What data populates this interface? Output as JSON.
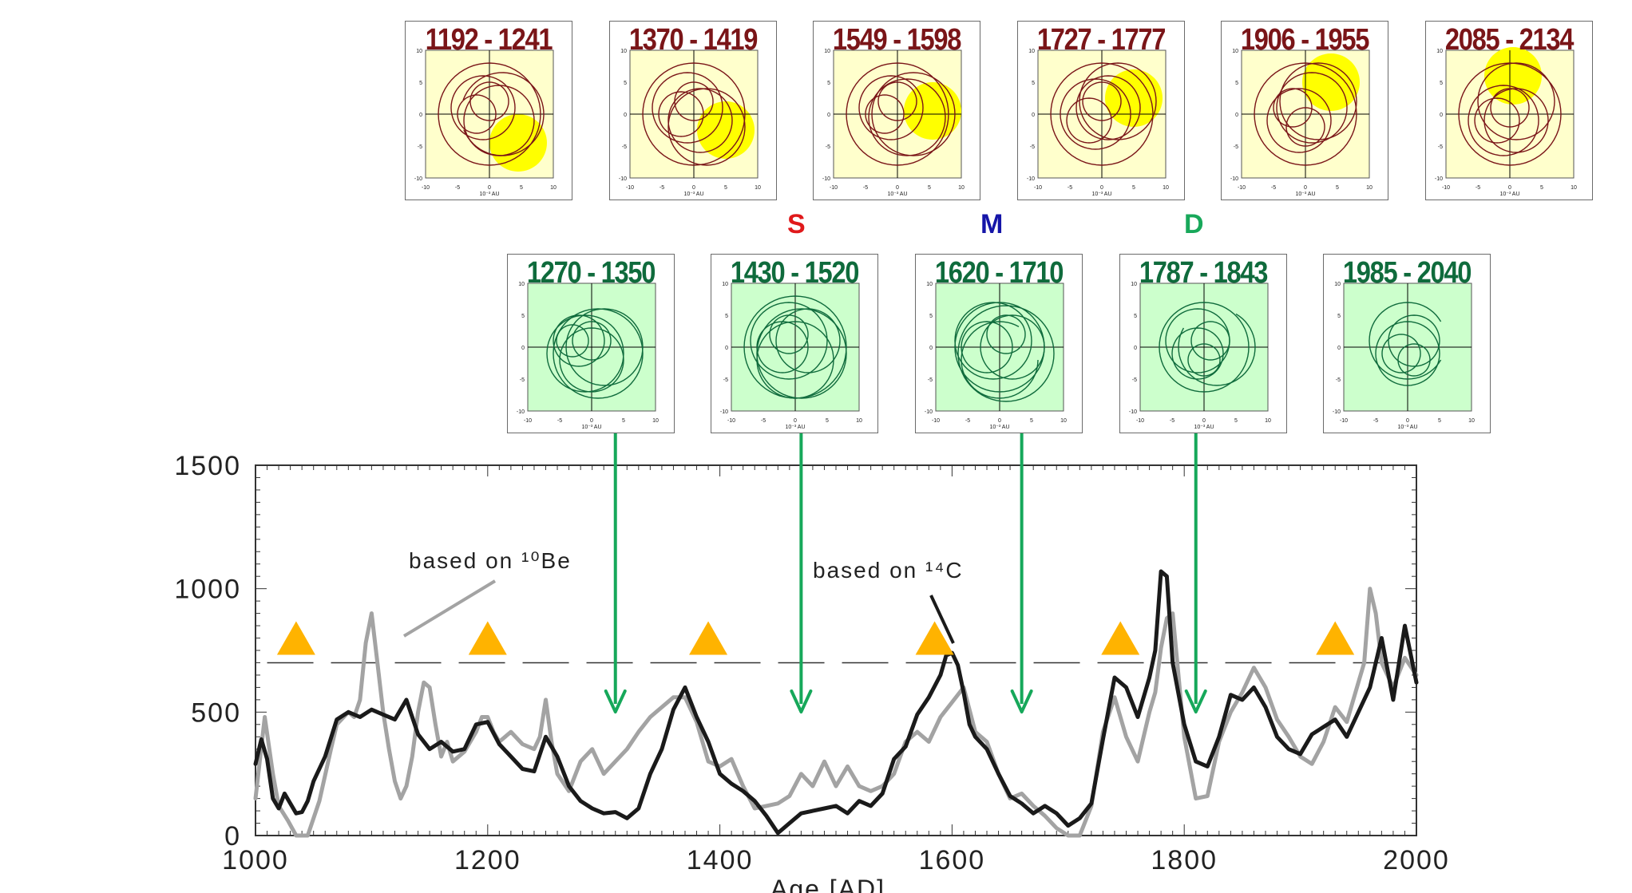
{
  "colors": {
    "brown": "#7a1518",
    "green_title": "#0f6b3c",
    "top_bg": "#ffffcc",
    "bottom_bg": "#ccffcc",
    "sun": "#ffff00",
    "arrow": "#16a85a",
    "triangle": "#ffb300",
    "series_be": "#a3a3a3",
    "series_c": "#1a1a1a",
    "letter_S": "#e0191b",
    "letter_M": "#1515a8",
    "letter_D": "#18a85a"
  },
  "top_panels": [
    {
      "label": "1192 - 1241",
      "sun": [
        4.5,
        -4.5
      ]
    },
    {
      "label": "1370 - 1419",
      "sun": [
        5.0,
        -2.5
      ]
    },
    {
      "label": "1549 - 1598",
      "sun": [
        5.5,
        0.5
      ]
    },
    {
      "label": "1727 - 1777",
      "sun": [
        5.0,
        2.5
      ]
    },
    {
      "label": "1906 - 1955",
      "sun": [
        4.0,
        5.0
      ]
    },
    {
      "label": "2085 - 2134",
      "sun": [
        0.5,
        6.0
      ]
    }
  ],
  "bottom_panels": [
    {
      "label": "1270 - 1350"
    },
    {
      "label": "1430 - 1520"
    },
    {
      "label": "1620 - 1710"
    },
    {
      "label": "1787 - 1843"
    },
    {
      "label": "1985 - 2040"
    }
  ],
  "panel_axis": {
    "range": [
      -10,
      10
    ],
    "ticks": [
      "-10",
      "-5",
      "0",
      "5",
      "10"
    ],
    "xlabel": "10⁻³ AU"
  },
  "letters": [
    {
      "text": "S",
      "color": "#e0191b"
    },
    {
      "text": "M",
      "color": "#1515a8"
    },
    {
      "text": "D",
      "color": "#18a85a"
    }
  ],
  "chart_data": {
    "type": "line",
    "xlabel": "Age [AD]",
    "ylabel": "",
    "xlim": [
      1000,
      2000
    ],
    "ylim": [
      0,
      1500
    ],
    "xticks": [
      1000,
      1200,
      1400,
      1600,
      1800,
      2000
    ],
    "yticks": [
      0,
      500,
      1000,
      1500
    ],
    "grid": false,
    "reference_line": 700,
    "annotations": [
      "based on ¹⁰Be",
      "based on ¹⁴C"
    ],
    "arrows_at": [
      1310,
      1470,
      1660,
      1810
    ],
    "triangles_at": [
      1035,
      1200,
      1390,
      1585,
      1745,
      1930
    ],
    "series": [
      {
        "x": [
          1000,
          1008,
          1015,
          1020,
          1028,
          1035,
          1045,
          1055,
          1065,
          1070,
          1080,
          1085,
          1090,
          1095,
          1100,
          1105,
          1110,
          1115,
          1120,
          1125,
          1130,
          1135,
          1140,
          1145,
          1150,
          1155,
          1160,
          1165,
          1170,
          1180,
          1190,
          1195,
          1200,
          1205,
          1210,
          1220,
          1230,
          1240,
          1245,
          1250,
          1255,
          1260,
          1270,
          1280,
          1290,
          1300,
          1310,
          1320,
          1330,
          1340,
          1350,
          1360,
          1365,
          1370,
          1380,
          1390,
          1400,
          1410,
          1420,
          1430,
          1440,
          1450,
          1460,
          1470,
          1480,
          1490,
          1500,
          1510,
          1520,
          1530,
          1540,
          1550,
          1560,
          1570,
          1580,
          1590,
          1600,
          1610,
          1620,
          1630,
          1640,
          1650,
          1660,
          1670,
          1680,
          1690,
          1700,
          1710,
          1720,
          1730,
          1740,
          1750,
          1760,
          1770,
          1775,
          1780,
          1785,
          1790,
          1800,
          1810,
          1820,
          1830,
          1840,
          1850,
          1860,
          1870,
          1880,
          1890,
          1900,
          1910,
          1920,
          1930,
          1940,
          1950,
          1955,
          1960,
          1965,
          1970,
          1980,
          1990,
          2000
        ],
        "y": [
          150,
          480,
          250,
          120,
          60,
          0,
          0,
          140,
          350,
          450,
          500,
          480,
          550,
          780,
          900,
          700,
          500,
          350,
          220,
          150,
          200,
          320,
          500,
          620,
          600,
          450,
          320,
          380,
          300,
          340,
          420,
          480,
          480,
          420,
          380,
          420,
          370,
          350,
          400,
          550,
          380,
          250,
          180,
          300,
          350,
          250,
          300,
          350,
          420,
          480,
          520,
          560,
          560,
          560,
          460,
          300,
          280,
          310,
          200,
          110,
          120,
          130,
          160,
          250,
          200,
          300,
          200,
          280,
          200,
          180,
          200,
          250,
          380,
          420,
          380,
          480,
          540,
          600,
          420,
          380,
          250,
          150,
          170,
          120,
          80,
          30,
          0,
          0,
          120,
          420,
          560,
          400,
          300,
          500,
          580,
          760,
          880,
          900,
          400,
          150,
          160,
          380,
          500,
          580,
          680,
          600,
          470,
          400,
          320,
          290,
          380,
          520,
          460,
          620,
          700,
          1000,
          900,
          700,
          600,
          720,
          650
        ]
      },
      {
        "x": [
          1000,
          1005,
          1010,
          1015,
          1020,
          1025,
          1030,
          1035,
          1040,
          1045,
          1050,
          1060,
          1070,
          1080,
          1090,
          1100,
          1110,
          1120,
          1130,
          1140,
          1150,
          1160,
          1170,
          1180,
          1190,
          1200,
          1210,
          1220,
          1230,
          1240,
          1250,
          1260,
          1270,
          1280,
          1290,
          1300,
          1310,
          1320,
          1330,
          1340,
          1350,
          1360,
          1370,
          1380,
          1390,
          1400,
          1410,
          1420,
          1430,
          1440,
          1450,
          1460,
          1470,
          1480,
          1490,
          1500,
          1510,
          1520,
          1530,
          1540,
          1550,
          1560,
          1570,
          1580,
          1590,
          1595,
          1600,
          1605,
          1610,
          1615,
          1620,
          1630,
          1640,
          1650,
          1660,
          1670,
          1680,
          1690,
          1700,
          1710,
          1720,
          1730,
          1740,
          1750,
          1760,
          1770,
          1775,
          1780,
          1785,
          1790,
          1800,
          1810,
          1820,
          1830,
          1840,
          1850,
          1860,
          1870,
          1880,
          1890,
          1900,
          1910,
          1920,
          1930,
          1940,
          1950,
          1960,
          1970,
          1980,
          1990,
          2000
        ],
        "y": [
          290,
          390,
          310,
          150,
          110,
          170,
          130,
          90,
          95,
          140,
          220,
          320,
          470,
          500,
          480,
          510,
          490,
          470,
          550,
          410,
          350,
          380,
          340,
          350,
          450,
          460,
          370,
          320,
          270,
          260,
          400,
          320,
          200,
          140,
          110,
          90,
          95,
          70,
          110,
          250,
          350,
          510,
          600,
          480,
          380,
          250,
          210,
          180,
          140,
          80,
          10,
          50,
          90,
          100,
          110,
          120,
          90,
          140,
          120,
          170,
          310,
          360,
          490,
          560,
          650,
          730,
          740,
          690,
          580,
          450,
          400,
          350,
          250,
          160,
          130,
          90,
          120,
          90,
          40,
          70,
          130,
          390,
          640,
          600,
          480,
          640,
          750,
          1070,
          1050,
          700,
          450,
          300,
          280,
          400,
          570,
          550,
          600,
          520,
          400,
          350,
          330,
          410,
          440,
          470,
          400,
          500,
          600,
          800,
          550,
          850,
          620
        ]
      }
    ]
  }
}
